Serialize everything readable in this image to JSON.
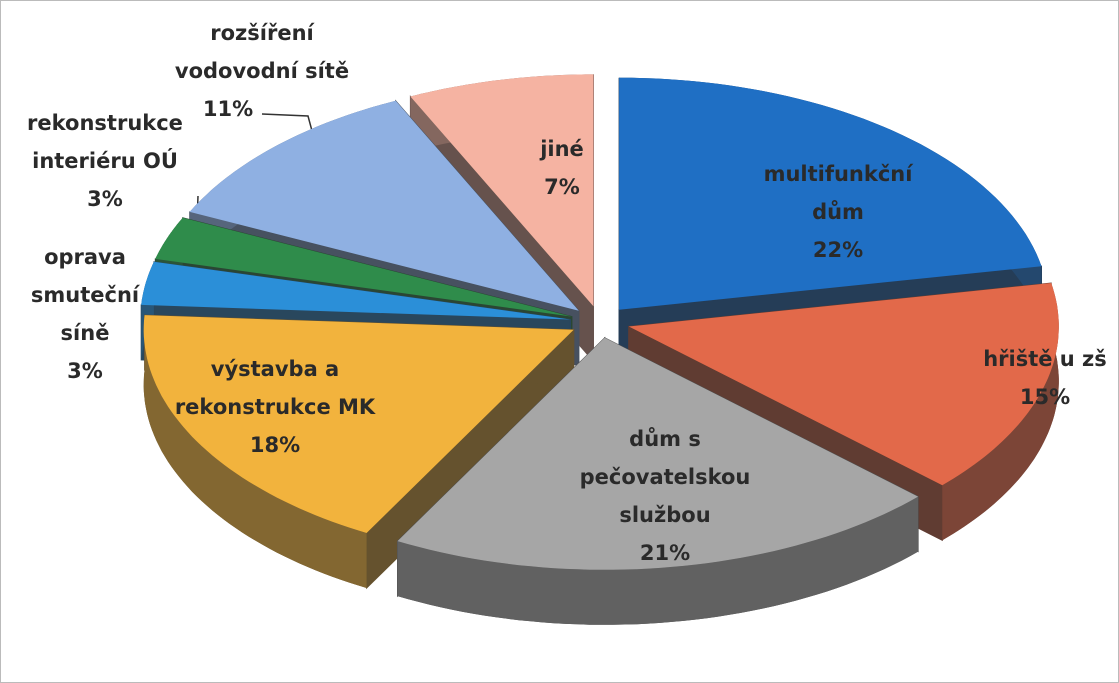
{
  "chart_data": {
    "type": "pie3d",
    "categories": [
      "multifunkční dům",
      "hřiště u zš",
      "dům s pečovatelskou službou",
      "výstavba a rekonstrukce MK",
      "oprava smuteční síně",
      "rekonstrukce interiéru OÚ",
      "rozšíření vodovodní sítě",
      "jiné"
    ],
    "values": [
      22,
      15,
      21,
      18,
      3,
      3,
      11,
      7
    ],
    "value_labels": [
      "22%",
      "15%",
      "21%",
      "18%",
      "3%",
      "3%",
      "11%",
      "7%"
    ],
    "colors": [
      "#1f6fc4",
      "#e2694a",
      "#a6a6a6",
      "#f2b33d",
      "#2b8fd8",
      "#2f8c4b",
      "#8fb0e2",
      "#f5b3a2"
    ]
  }
}
